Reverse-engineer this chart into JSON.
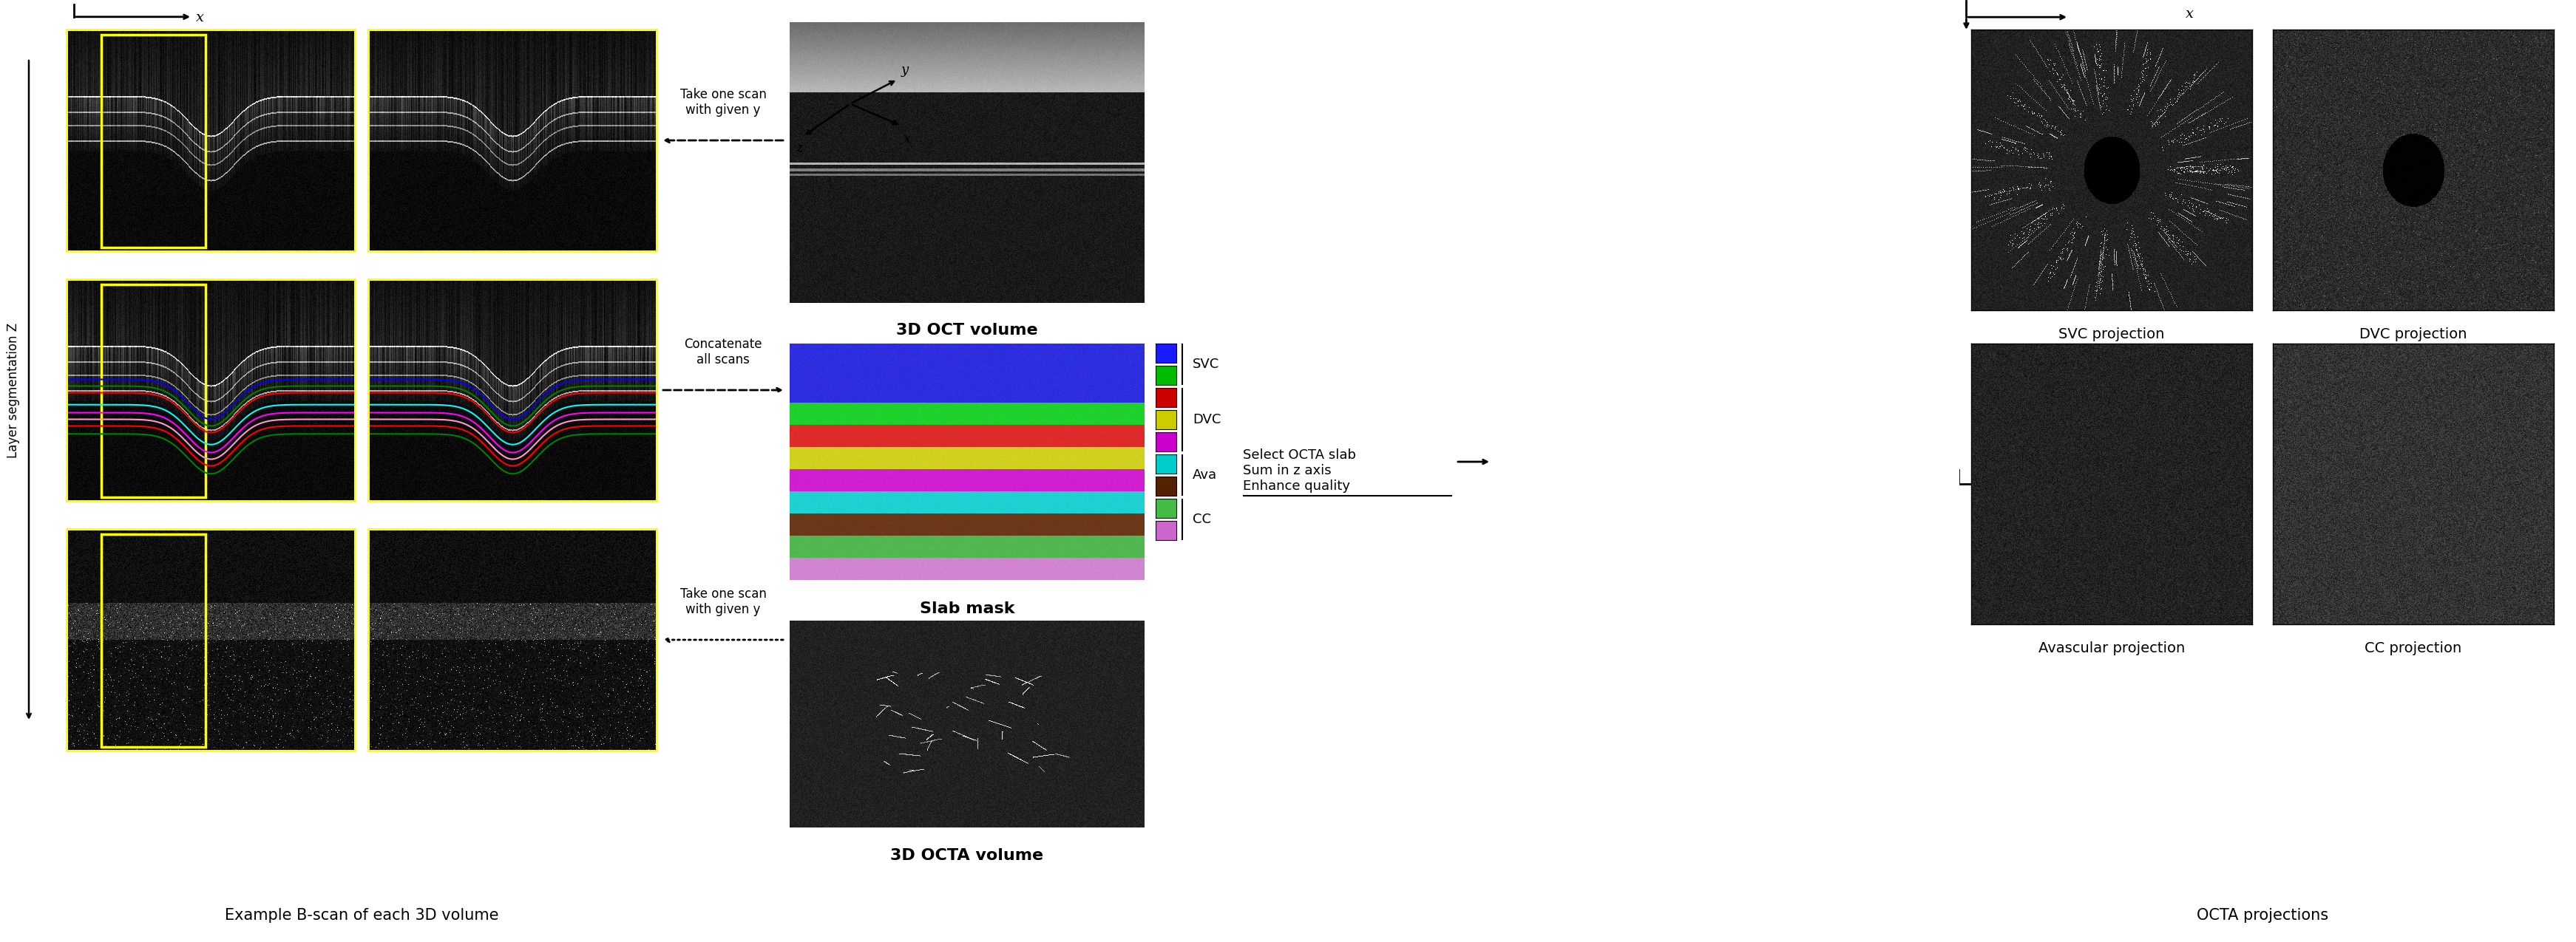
{
  "background_color": "#ffffff",
  "left_label": "Layer segmentation Z",
  "bottom_label1": "Example B-scan of each 3D volume",
  "bottom_label2": "3D OCTA volume",
  "bottom_label3": "OCTA projections",
  "oct_volume_label": "3D OCT volume",
  "slab_mask_label": "Slab mask",
  "slab_colors": [
    "#1a1aff",
    "#00bb00",
    "#cc0000",
    "#cccc00",
    "#cc00cc",
    "#00cccc",
    "#552200",
    "#44bb44",
    "#cc66cc"
  ],
  "slab_labels": [
    "",
    "SVC",
    "",
    "",
    "DVC",
    "",
    "Ava",
    "",
    "CC"
  ],
  "projection_labels": [
    "SVC projection",
    "DVC projection",
    "Avascular projection",
    "CC projection"
  ],
  "arrow_text1": "Take one scan\nwith given y",
  "arrow_text2": "Concatenate\nall scans",
  "arrow_text3": "Take one scan\nwith given y",
  "process_text": "Select OCTA slab\nSum in z axis\nEnhance quality"
}
